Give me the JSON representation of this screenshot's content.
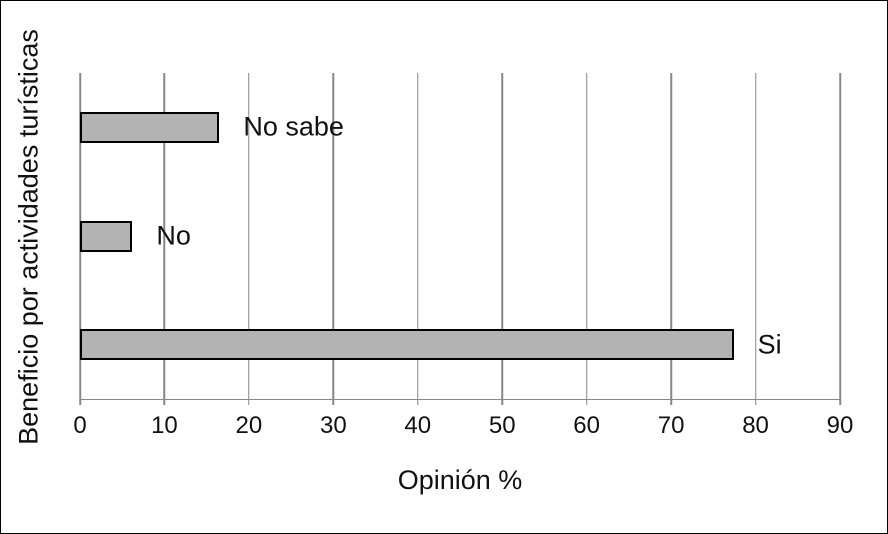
{
  "figure": {
    "background_color": "#ffffff",
    "border_color": "#000000",
    "text_color": "#111111"
  },
  "chart_data": {
    "type": "bar",
    "orientation": "horizontal",
    "title": "",
    "xlabel": "Opinión %",
    "ylabel": "Beneficio por actividades turísticas",
    "categories": [
      "No sabe",
      "No",
      "Si"
    ],
    "values": [
      16.5,
      6.2,
      77.4
    ],
    "xlim": [
      0,
      90
    ],
    "xticks": [
      0,
      10,
      20,
      30,
      40,
      50,
      60,
      70,
      80,
      90
    ],
    "grid": "vertical-gridlines",
    "legend_position": "none",
    "bar_label_position": "right-of-bar",
    "bar_fill_color": "#b3b3b3",
    "bar_border_color": "#000000",
    "gridline_color": "#878787"
  }
}
